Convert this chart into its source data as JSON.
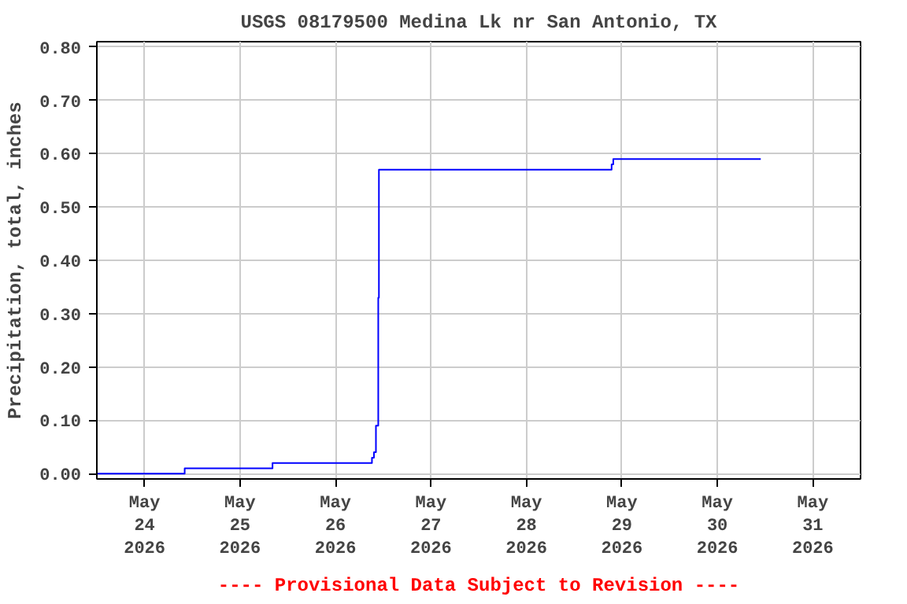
{
  "chart_data": {
    "type": "step",
    "title": "USGS 08179500 Medina Lk nr San Antonio, TX",
    "ylabel": "Precipitation, total, inches",
    "x": [
      "2026-05-23T12:00",
      "2026-05-24T10:05",
      "2026-05-25T08:10",
      "2026-05-26T09:10",
      "2026-05-26T09:40",
      "2026-05-26T10:10",
      "2026-05-26T10:45",
      "2026-05-26T10:55",
      "2026-05-28T21:25",
      "2026-05-28T21:50",
      "2026-05-30T10:55"
    ],
    "series": [
      {
        "color": "#0000ff",
        "values": [
          0.0,
          0.01,
          0.02,
          0.03,
          0.04,
          0.09,
          0.33,
          0.57,
          0.58,
          0.59,
          0.59
        ]
      }
    ],
    "xlim": [
      "2026-05-23T12:00",
      "2026-05-31T12:00"
    ],
    "xticks": [
      {
        "value": "2026-05-24",
        "label": "May\n24\n2026"
      },
      {
        "value": "2026-05-25",
        "label": "May\n25\n2026"
      },
      {
        "value": "2026-05-26",
        "label": "May\n26\n2026"
      },
      {
        "value": "2026-05-27",
        "label": "May\n27\n2026"
      },
      {
        "value": "2026-05-28",
        "label": "May\n28\n2026"
      },
      {
        "value": "2026-05-29",
        "label": "May\n29\n2026"
      },
      {
        "value": "2026-05-30",
        "label": "May\n30\n2026"
      },
      {
        "value": "2026-05-31",
        "label": "May\n31\n2026"
      }
    ],
    "ylim": [
      -0.01,
      0.81
    ],
    "yticks": [
      {
        "value": 0,
        "label": "0.00"
      },
      {
        "value": 0.1,
        "label": "0.10"
      },
      {
        "value": 0.2,
        "label": "0.20"
      },
      {
        "value": 0.3,
        "label": "0.30"
      },
      {
        "value": 0.4,
        "label": "0.40"
      },
      {
        "value": 0.5,
        "label": "0.50"
      },
      {
        "value": 0.6,
        "label": "0.60"
      },
      {
        "value": 0.7,
        "label": "0.70"
      },
      {
        "value": 0.8,
        "label": "0.80"
      }
    ],
    "grid": true,
    "annotations": [
      "---- Provisional Data Subject to Revision ----"
    ]
  }
}
